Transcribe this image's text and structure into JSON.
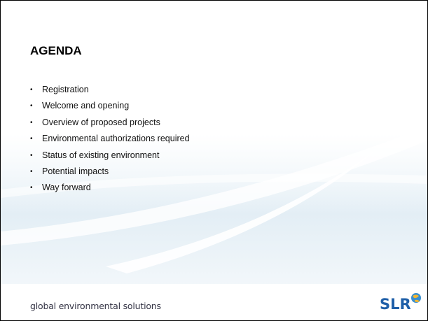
{
  "title": "AGENDA",
  "items": [
    "Registration",
    "Welcome and opening",
    "Overview of proposed projects",
    "Environmental authorizations required",
    "Status of existing environment",
    "Potential impacts",
    "Way forward"
  ],
  "footer": "global environmental solutions",
  "logo": "SLR"
}
